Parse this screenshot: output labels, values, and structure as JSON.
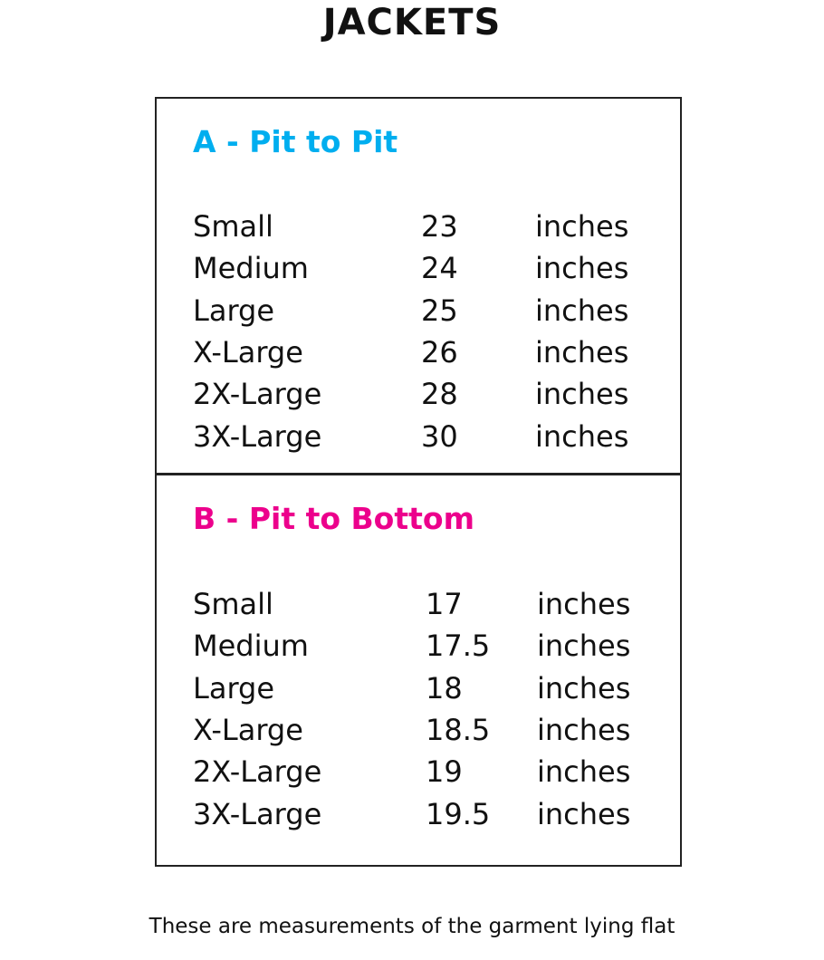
{
  "title": "JACKETS",
  "colors": {
    "section_a": "#00aeef",
    "section_b": "#ec008c"
  },
  "sections": [
    {
      "title": "A - Pit to Pit",
      "rows": [
        {
          "size": "Small",
          "value": "23",
          "unit": "inches"
        },
        {
          "size": "Medium",
          "value": "24",
          "unit": "inches"
        },
        {
          "size": "Large",
          "value": "25",
          "unit": "inches"
        },
        {
          "size": "X-Large",
          "value": "26",
          "unit": "inches"
        },
        {
          "size": "2X-Large",
          "value": "28",
          "unit": "inches"
        },
        {
          "size": "3X-Large",
          "value": "30",
          "unit": "inches"
        }
      ]
    },
    {
      "title": "B - Pit to Bottom",
      "rows": [
        {
          "size": "Small",
          "value": "17",
          "unit": "inches"
        },
        {
          "size": "Medium",
          "value": "17.5",
          "unit": "inches"
        },
        {
          "size": "Large",
          "value": "18",
          "unit": "inches"
        },
        {
          "size": "X-Large",
          "value": "18.5",
          "unit": "inches"
        },
        {
          "size": "2X-Large",
          "value": "19",
          "unit": "inches"
        },
        {
          "size": "3X-Large",
          "value": "19.5",
          "unit": "inches"
        }
      ]
    }
  ],
  "caption": "These are measurements of the garment lying flat"
}
